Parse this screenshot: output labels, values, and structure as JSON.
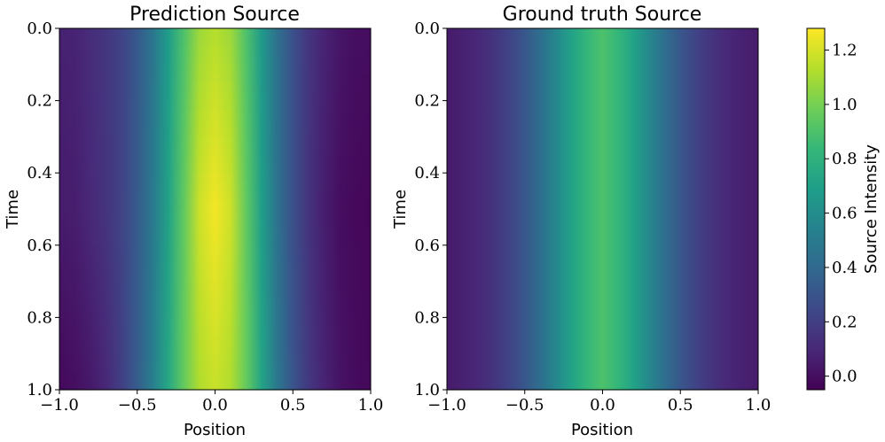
{
  "chart_data": [
    {
      "type": "heatmap",
      "title": "Prediction Source",
      "xlabel": "Position",
      "ylabel": "Time",
      "xlim": [
        -1.0,
        1.0
      ],
      "ylim": [
        1.0,
        0.0
      ],
      "xticks": [
        "−1.0",
        "−0.5",
        "0.0",
        "0.5",
        "1.0"
      ],
      "yticks": [
        "0.0",
        "0.2",
        "0.4",
        "0.6",
        "0.8",
        "1.0"
      ],
      "profile": {
        "x": [
          -1.0,
          -0.9,
          -0.8,
          -0.7,
          -0.6,
          -0.5,
          -0.4,
          -0.3,
          -0.2,
          -0.1,
          0.0,
          0.1,
          0.2,
          0.3,
          0.4,
          0.5,
          0.6,
          0.7,
          0.8,
          0.9,
          1.0
        ],
        "t0": [
          0.07,
          0.08,
          0.12,
          0.16,
          0.22,
          0.32,
          0.47,
          0.68,
          0.9,
          1.08,
          1.13,
          1.08,
          0.9,
          0.66,
          0.44,
          0.28,
          0.16,
          0.08,
          0.03,
          0.0,
          0.0
        ],
        "tmid": [
          0.05,
          0.06,
          0.1,
          0.15,
          0.22,
          0.33,
          0.49,
          0.71,
          0.95,
          1.18,
          1.26,
          1.18,
          0.95,
          0.69,
          0.45,
          0.28,
          0.15,
          0.06,
          0.0,
          -0.02,
          -0.03
        ],
        "t1": [
          -0.02,
          0.0,
          0.04,
          0.1,
          0.2,
          0.34,
          0.52,
          0.74,
          0.96,
          1.12,
          1.17,
          1.12,
          0.96,
          0.72,
          0.48,
          0.3,
          0.17,
          0.08,
          0.02,
          -0.01,
          -0.02
        ]
      },
      "grid": false
    },
    {
      "type": "heatmap",
      "title": "Ground truth Source",
      "xlabel": "Position",
      "ylabel": "Time",
      "xlim": [
        -1.0,
        1.0
      ],
      "ylim": [
        1.0,
        0.0
      ],
      "xticks": [
        "−1.0",
        "−0.5",
        "0.0",
        "0.5",
        "1.0"
      ],
      "yticks": [
        "0.0",
        "0.2",
        "0.4",
        "0.6",
        "0.8",
        "1.0"
      ],
      "profile": {
        "x": [
          -1.0,
          -0.9,
          -0.8,
          -0.7,
          -0.6,
          -0.5,
          -0.4,
          -0.3,
          -0.2,
          -0.1,
          0.0,
          0.1,
          0.2,
          0.3,
          0.4,
          0.5,
          0.6,
          0.7,
          0.8,
          0.9,
          1.0
        ],
        "t0": [
          0.05,
          0.07,
          0.1,
          0.15,
          0.22,
          0.31,
          0.43,
          0.57,
          0.71,
          0.83,
          0.9,
          0.83,
          0.71,
          0.57,
          0.43,
          0.31,
          0.22,
          0.15,
          0.1,
          0.07,
          0.05
        ],
        "tmid": [
          0.05,
          0.07,
          0.1,
          0.15,
          0.22,
          0.31,
          0.43,
          0.57,
          0.71,
          0.83,
          0.9,
          0.83,
          0.71,
          0.57,
          0.43,
          0.31,
          0.22,
          0.15,
          0.1,
          0.07,
          0.05
        ],
        "t1": [
          0.05,
          0.07,
          0.1,
          0.15,
          0.22,
          0.31,
          0.43,
          0.57,
          0.71,
          0.83,
          0.9,
          0.83,
          0.71,
          0.57,
          0.43,
          0.31,
          0.22,
          0.15,
          0.1,
          0.07,
          0.05
        ]
      },
      "grid": false
    }
  ],
  "colorbar": {
    "label": "Source Intensity",
    "range": [
      -0.05,
      1.28
    ],
    "ticks": [
      "0.0",
      "0.2",
      "0.4",
      "0.6",
      "0.8",
      "1.0",
      "1.2"
    ],
    "tick_values": [
      0.0,
      0.2,
      0.4,
      0.6,
      0.8,
      1.0,
      1.2
    ],
    "colormap": "viridis",
    "colormap_stops": [
      "#440154",
      "#482878",
      "#3e4989",
      "#31688e",
      "#26828e",
      "#1f9e89",
      "#35b779",
      "#6ece58",
      "#b5de2b",
      "#fde725"
    ]
  }
}
